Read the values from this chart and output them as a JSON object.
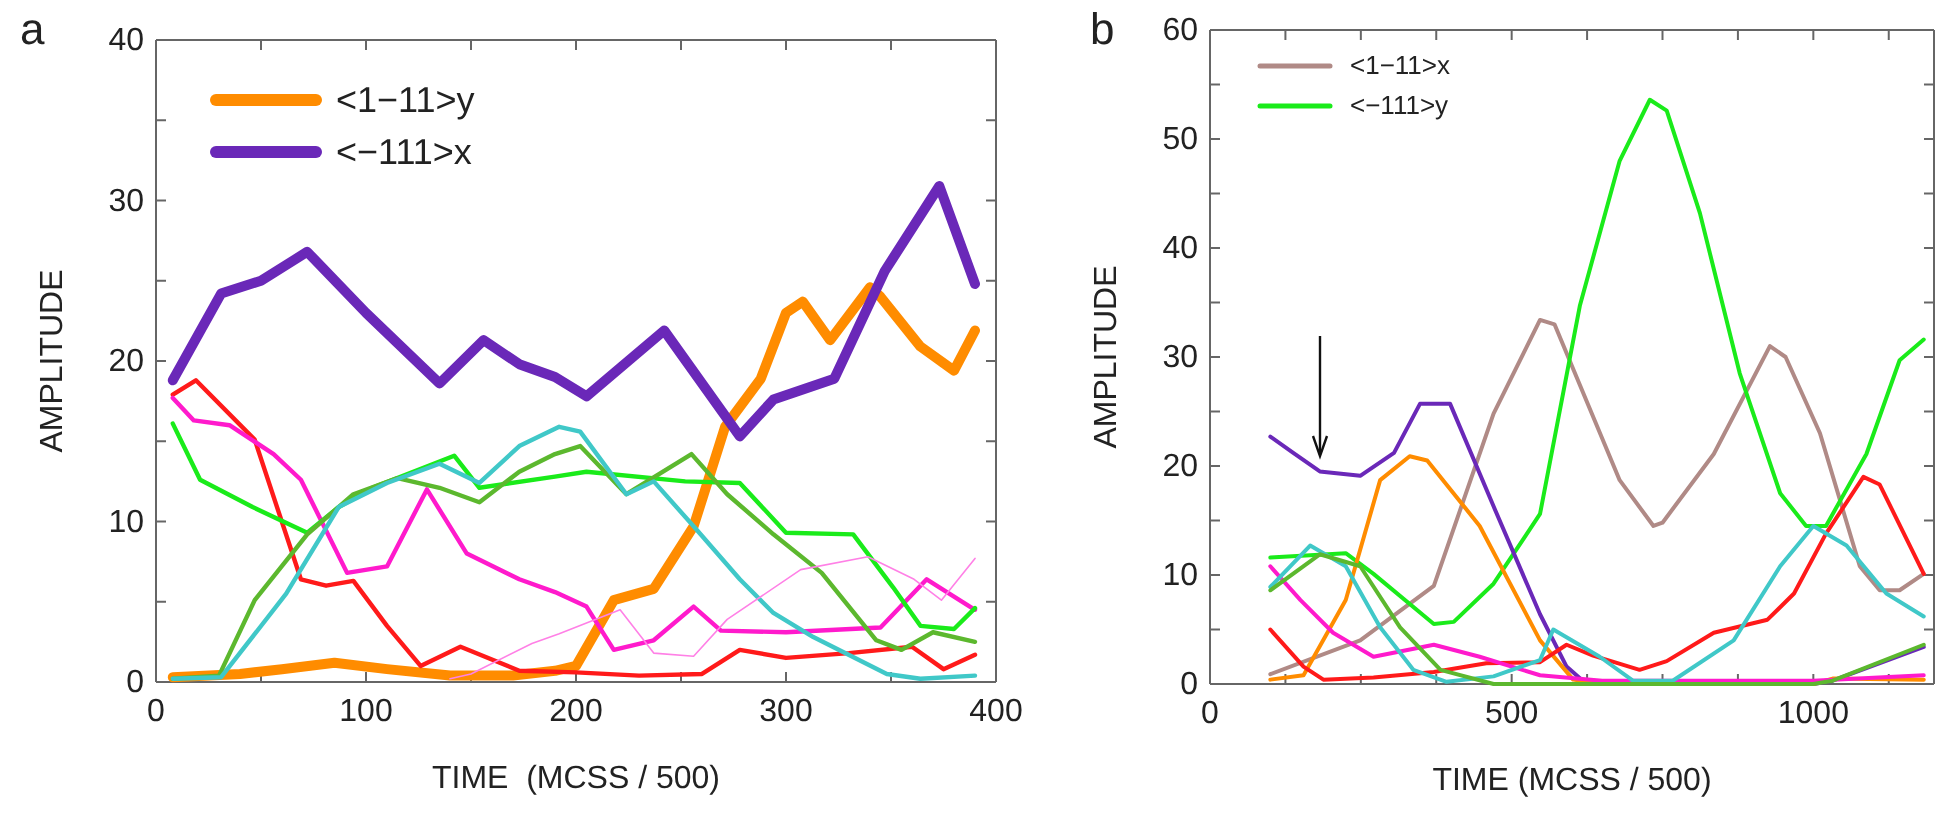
{
  "chart_data": [
    {
      "type": "line",
      "title": "a",
      "xlabel": "TIME  (MCSS / 500)",
      "ylabel": "AMPLITUDE",
      "xlim": [
        0,
        400
      ],
      "ylim": [
        0,
        40
      ],
      "xticks": [
        0,
        {
          "value": 50,
          "label": null
        },
        100,
        {
          "value": 150,
          "label": null
        },
        200,
        {
          "value": 250,
          "label": null
        },
        300,
        {
          "value": 350,
          "label": null
        },
        400
      ],
      "yticks": [
        0,
        {
          "value": 5,
          "label": null
        },
        10,
        {
          "value": 15,
          "label": null
        },
        20,
        {
          "value": 25,
          "label": null
        },
        30,
        {
          "value": 35,
          "label": null
        },
        40
      ],
      "grid": false,
      "legend": "top left",
      "marker": "none",
      "line_style": "solid",
      "series": [
        {
          "name": "<1−11>y",
          "color": "#ff8c00",
          "x": [
            8,
            40,
            60,
            85,
            110,
            140,
            170,
            190,
            200,
            218,
            237,
            256,
            271,
            288,
            300,
            308,
            321,
            340,
            345,
            364,
            380,
            390
          ],
          "values": [
            0.3,
            0.5,
            0.8,
            1.2,
            0.8,
            0.4,
            0.4,
            0.7,
            1,
            5.1,
            5.8,
            9.7,
            15.9,
            18.9,
            23,
            23.7,
            21.3,
            24.6,
            24,
            20.9,
            19.4,
            21.9
          ]
        },
        {
          "name": "<−111>x",
          "color": "#6a28b8",
          "x": [
            8,
            31,
            50,
            72,
            100,
            135,
            156,
            173,
            190,
            205,
            242,
            278,
            294,
            323,
            347,
            373,
            390
          ],
          "values": [
            18.8,
            24.2,
            25,
            26.8,
            23,
            18.6,
            21.3,
            19.8,
            19,
            17.8,
            21.9,
            15.3,
            17.6,
            18.9,
            25.6,
            30.9,
            24.8
          ]
        },
        {
          "color": "#ff1a1a",
          "x": [
            8,
            19,
            47,
            69,
            81,
            94,
            110,
            126,
            145,
            173,
            200,
            230,
            260,
            278,
            300,
            330,
            360,
            375,
            390
          ],
          "values": [
            17.9,
            18.8,
            15.1,
            6.4,
            6,
            6.3,
            3.5,
            1,
            2.2,
            0.7,
            0.6,
            0.4,
            0.5,
            2,
            1.5,
            1.8,
            2.2,
            0.8,
            1.7
          ]
        },
        {
          "color": "#ff1acc",
          "x": [
            8,
            18,
            35,
            56,
            69,
            91,
            110,
            129,
            148,
            173,
            190,
            205,
            218,
            237,
            256,
            269,
            300,
            345,
            367,
            390
          ],
          "values": [
            17.7,
            16.3,
            16,
            14.2,
            12.6,
            6.8,
            7.2,
            12,
            8,
            6.4,
            5.6,
            4.7,
            2,
            2.6,
            4.7,
            3.2,
            3.1,
            3.4,
            6.4,
            4.5
          ]
        },
        {
          "color": "#1aeb1a",
          "x": [
            8,
            21,
            46,
            72,
            87,
            103,
            142,
            154,
            190,
            205,
            252,
            278,
            300,
            332,
            351,
            364,
            380,
            390
          ],
          "values": [
            16.1,
            12.6,
            10.9,
            9.3,
            10.9,
            12.1,
            14.1,
            12.1,
            12.8,
            13.1,
            12.5,
            12.4,
            9.3,
            9.2,
            5.9,
            3.5,
            3.3,
            4.6
          ]
        },
        {
          "color": "#5cb82e",
          "x": [
            8,
            30,
            47,
            72,
            94,
            115,
            135,
            154,
            173,
            190,
            202,
            224,
            255,
            272,
            294,
            317,
            343,
            355,
            370,
            390
          ],
          "values": [
            0.2,
            0.4,
            5.1,
            9.2,
            11.7,
            12.7,
            12.1,
            11.2,
            13.1,
            14.2,
            14.7,
            11.7,
            14.2,
            11.7,
            9.2,
            6.8,
            2.6,
            2,
            3.1,
            2.5
          ]
        },
        {
          "color": "#40c8c8",
          "x": [
            8,
            31,
            62,
            87,
            110,
            135,
            154,
            173,
            192,
            202,
            224,
            237,
            256,
            278,
            294,
            313,
            348,
            364,
            390
          ],
          "values": [
            0.2,
            0.3,
            5.5,
            10.9,
            12.4,
            13.6,
            12.4,
            14.7,
            15.9,
            15.6,
            11.7,
            12.5,
            9.7,
            6.4,
            4.3,
            2.8,
            0.5,
            0.2,
            0.4
          ]
        },
        {
          "color": "#ff80e6",
          "x": [
            140,
            150,
            179,
            192,
            221,
            237,
            256,
            272,
            307,
            339,
            361,
            374,
            390
          ],
          "values": [
            0.2,
            0.5,
            2.4,
            3,
            4.5,
            1.8,
            1.6,
            3.9,
            7,
            7.8,
            6.4,
            5.1,
            7.7
          ]
        }
      ]
    },
    {
      "type": "line",
      "title": "b",
      "xlabel": "TIME (MCSS / 500)",
      "ylabel": "AMPLITUDE",
      "xlim": [
        0,
        1200
      ],
      "ylim": [
        0,
        60
      ],
      "xticks": [
        0,
        {
          "value": 125,
          "label": null
        },
        {
          "value": 250,
          "label": null
        },
        {
          "value": 375,
          "label": null
        },
        500,
        {
          "value": 625,
          "label": null
        },
        {
          "value": 750,
          "label": null
        },
        {
          "value": 875,
          "label": null
        },
        1000,
        {
          "value": 1125,
          "label": null
        }
      ],
      "yticks": [
        0,
        {
          "value": 5,
          "label": null
        },
        10,
        {
          "value": 15,
          "label": null
        },
        20,
        {
          "value": 25,
          "label": null
        },
        30,
        {
          "value": 35,
          "label": null
        },
        40,
        {
          "value": 45,
          "label": null
        },
        50,
        {
          "value": 55,
          "label": null
        },
        60
      ],
      "grid": false,
      "legend": "top left",
      "marker": "none",
      "line_style": "solid",
      "series": [
        {
          "name": "<1−11>x",
          "color": "#b08a86",
          "x": [
            100,
            249,
            371,
            470,
            547,
            571,
            679,
            735,
            750,
            835,
            928,
            954,
            1011,
            1077,
            1110,
            1143,
            1183
          ],
          "values": [
            0.9,
            4,
            9,
            24.8,
            33.4,
            33,
            18.7,
            14.5,
            14.8,
            21.1,
            31,
            30,
            23,
            10.8,
            8.6,
            8.6,
            10.1
          ]
        },
        {
          "name": "<−111>y",
          "color": "#1aeb1a",
          "x": [
            100,
            225,
            271,
            371,
            404,
            470,
            547,
            613,
            679,
            729,
            757,
            812,
            878,
            945,
            988,
            1021,
            1088,
            1143,
            1183
          ],
          "values": [
            11.6,
            12,
            10.1,
            5.5,
            5.7,
            9.2,
            15.6,
            34.7,
            48,
            53.6,
            52.6,
            43.2,
            28.5,
            17.5,
            14.5,
            14.5,
            21.1,
            29.7,
            31.6
          ]
        },
        {
          "color": "#6a28b8",
          "x": [
            100,
            138,
            182,
            249,
            305,
            348,
            398,
            470,
            547,
            591,
            624,
            1000,
            1032,
            1183
          ],
          "values": [
            22.7,
            21.2,
            19.5,
            19.1,
            21.2,
            25.7,
            25.7,
            16.3,
            6.4,
            1.6,
            0,
            0,
            0.3,
            3.4
          ]
        },
        {
          "color": "#ff8c00",
          "x": [
            100,
            155,
            225,
            282,
            331,
            360,
            447,
            547,
            602,
            650,
            1000,
            1032,
            1183
          ],
          "values": [
            0.4,
            0.8,
            7.7,
            18.7,
            20.9,
            20.5,
            14.5,
            4,
            0.4,
            0,
            0,
            0.5,
            0.4
          ]
        },
        {
          "color": "#ff1a1a",
          "x": [
            100,
            155,
            188,
            271,
            371,
            458,
            547,
            591,
            635,
            712,
            757,
            835,
            924,
            968,
            1021,
            1083,
            1110,
            1183
          ],
          "values": [
            5,
            1.6,
            0.4,
            0.6,
            1.1,
            1.9,
            2,
            3.6,
            2.6,
            1.3,
            2.1,
            4.7,
            5.9,
            8.3,
            13.8,
            19,
            18.3,
            10.1
          ]
        },
        {
          "color": "#ff1acc",
          "x": [
            100,
            150,
            204,
            271,
            371,
            447,
            547,
            650,
            1000,
            1183
          ],
          "values": [
            10.8,
            7.7,
            4.7,
            2.5,
            3.6,
            2.5,
            0.8,
            0.3,
            0.3,
            0.8
          ]
        },
        {
          "color": "#40c8c8",
          "x": [
            100,
            166,
            225,
            282,
            337,
            392,
            470,
            547,
            569,
            646,
            701,
            767,
            868,
            945,
            1000,
            1055,
            1121,
            1183
          ],
          "values": [
            8.9,
            12.7,
            10.8,
            5.2,
            1.3,
            0.2,
            0.7,
            2.2,
            5,
            2.5,
            0.3,
            0.3,
            4,
            10.8,
            14.5,
            12.7,
            8.3,
            6.2
          ]
        },
        {
          "color": "#5cb82e",
          "x": [
            100,
            182,
            249,
            315,
            382,
            470,
            1000,
            1032,
            1183
          ],
          "values": [
            8.6,
            11.9,
            10.8,
            5.2,
            1.3,
            0,
            0,
            0.3,
            3.6
          ]
        }
      ]
    }
  ]
}
